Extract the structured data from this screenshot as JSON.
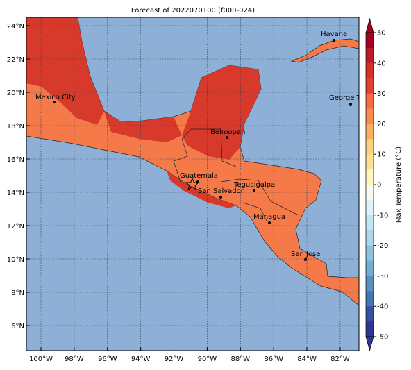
{
  "title": "Forecast of 2022070100 (f000-024)",
  "lon_ticks": [
    "100°W",
    "98°W",
    "96°W",
    "94°W",
    "92°W",
    "90°W",
    "88°W",
    "86°W",
    "84°W",
    "82°W"
  ],
  "lat_ticks": [
    "24°N",
    "22°N",
    "20°N",
    "18°N",
    "16°N",
    "14°N",
    "12°N",
    "10°N",
    "8°N",
    "6°N"
  ],
  "cities": [
    {
      "name": "Mexico City"
    },
    {
      "name": "Belmopan"
    },
    {
      "name": "Guatemala"
    },
    {
      "name": "San Salvador"
    },
    {
      "name": "Tegucigalpa"
    },
    {
      "name": "Managua"
    },
    {
      "name": "San Jose"
    },
    {
      "name": "Havana"
    },
    {
      "name": "George Town"
    }
  ],
  "colorbar": {
    "label": "Max Temperature (°C)",
    "ticks": [
      50,
      40,
      30,
      20,
      10,
      0,
      -10,
      -20,
      -30,
      -40,
      -50
    ],
    "colors": [
      "#a50026",
      "#c11a27",
      "#d73027",
      "#e0422f",
      "#f46d43",
      "#f88d52",
      "#fdae61",
      "#fed081",
      "#fee090",
      "#fff5c0",
      "#f7fcf0",
      "#e0f3f8",
      "#c4e6f0",
      "#abd9e9",
      "#8cc3dd",
      "#74add1",
      "#5a8fc2",
      "#4575b4",
      "#3a4fa0",
      "#313695"
    ]
  }
}
